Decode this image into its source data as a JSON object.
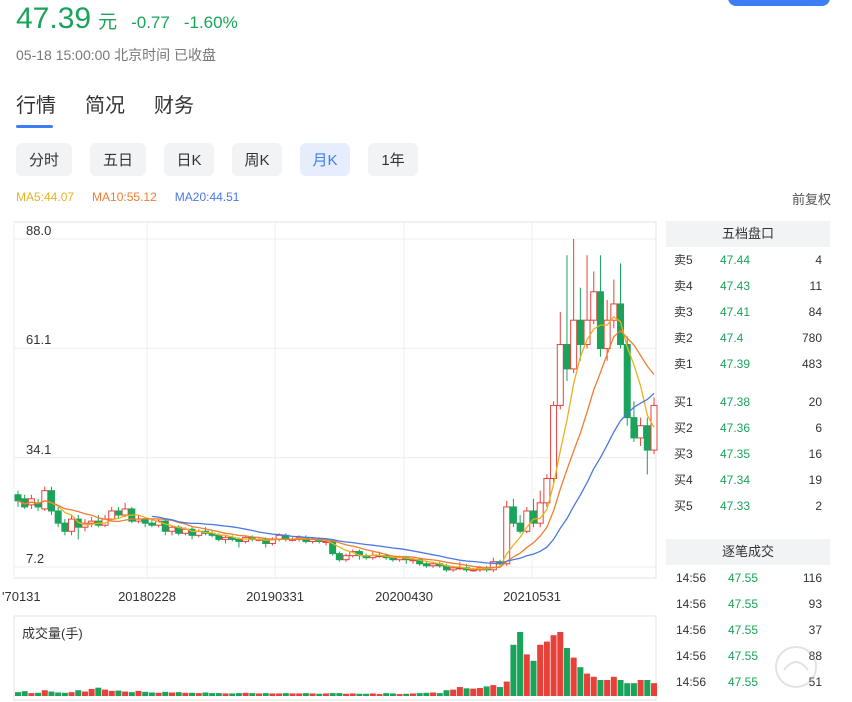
{
  "quote": {
    "price": "47.39",
    "unit": "元",
    "change": "-0.77",
    "change_pct": "-1.60%",
    "status": "05-18 15:00:00 北京时间 已收盘"
  },
  "tabs": [
    {
      "label": "行情",
      "active": true
    },
    {
      "label": "简况",
      "active": false
    },
    {
      "label": "财务",
      "active": false
    }
  ],
  "periods": [
    {
      "label": "分时",
      "active": false
    },
    {
      "label": "五日",
      "active": false
    },
    {
      "label": "日K",
      "active": false
    },
    {
      "label": "周K",
      "active": false
    },
    {
      "label": "月K",
      "active": true
    },
    {
      "label": "1年",
      "active": false
    }
  ],
  "ma": {
    "ma5": "MA5:44.07",
    "ma10": "MA10:55.12",
    "ma20": "MA20:44.51",
    "adjust": "前复权"
  },
  "colors": {
    "up": "#e8413a",
    "down": "#1aa35a",
    "ma5": "#e8b21f",
    "ma10": "#ef7d32",
    "ma20": "#4b78e2",
    "accent": "#3d7ef5"
  },
  "chart_data": {
    "type": "candlestick",
    "ylim": [
      7.2,
      88.0
    ],
    "y_ticks": [
      "88.0",
      "61.1",
      "34.1",
      "7.2"
    ],
    "x_labels": [
      "70131",
      "20180228",
      "20190331",
      "20200430",
      "20210531"
    ],
    "volume_label": "成交量(手)",
    "candles": [
      [
        25,
        23.5,
        26,
        22
      ],
      [
        24,
        22,
        25,
        21.5
      ],
      [
        22.5,
        24,
        25,
        21.5
      ],
      [
        23,
        22,
        24,
        21
      ],
      [
        21.5,
        26,
        27,
        21
      ],
      [
        26,
        21,
        27,
        20
      ],
      [
        21,
        18,
        22,
        17
      ],
      [
        18,
        16,
        19,
        15
      ],
      [
        16,
        19,
        20,
        15
      ],
      [
        19,
        17,
        20,
        14
      ],
      [
        17,
        18,
        19,
        16
      ],
      [
        18,
        18.5,
        19.5,
        17
      ],
      [
        18.5,
        17.5,
        20,
        17
      ],
      [
        17.5,
        19,
        20,
        17
      ],
      [
        19,
        21,
        22,
        18.5
      ],
      [
        21,
        20,
        22,
        19
      ],
      [
        20,
        21.5,
        23,
        19.5
      ],
      [
        21.5,
        18.5,
        22,
        18
      ],
      [
        18.5,
        19,
        20,
        18
      ],
      [
        19,
        18,
        19.5,
        17
      ],
      [
        18,
        17.5,
        19,
        17
      ],
      [
        17.5,
        18.5,
        19,
        17
      ],
      [
        18.5,
        16,
        19,
        15
      ],
      [
        16,
        17,
        17.5,
        15
      ],
      [
        17,
        15.5,
        17.5,
        15
      ],
      [
        15.5,
        16.5,
        17,
        15
      ],
      [
        16.5,
        15,
        17,
        14
      ],
      [
        15,
        16,
        16.5,
        14.5
      ],
      [
        16,
        15.5,
        17,
        15
      ],
      [
        15.5,
        15,
        16,
        14.5
      ],
      [
        15,
        14,
        15.5,
        13.5
      ],
      [
        14,
        14.5,
        15,
        13
      ],
      [
        14.5,
        14,
        15,
        13.5
      ],
      [
        14,
        13.5,
        14.5,
        12
      ],
      [
        13.5,
        14.5,
        15,
        13
      ],
      [
        14.5,
        14,
        15,
        13.5
      ],
      [
        14,
        14,
        14.5,
        13.5
      ],
      [
        14,
        13,
        14.5,
        12
      ],
      [
        13,
        14,
        14.5,
        12.5
      ],
      [
        14,
        15,
        15.5,
        13.5
      ],
      [
        15,
        14,
        15.5,
        13.5
      ],
      [
        14,
        14,
        14.5,
        13.5
      ],
      [
        14,
        14.5,
        15,
        13.5
      ],
      [
        14.5,
        13.5,
        15,
        13
      ],
      [
        13.5,
        14,
        14.5,
        13
      ],
      [
        14,
        13.5,
        14.5,
        13
      ],
      [
        13.5,
        13.5,
        14,
        12.5
      ],
      [
        13.5,
        10.5,
        14,
        10
      ],
      [
        10.5,
        9,
        11,
        8.5
      ],
      [
        9,
        10,
        10.5,
        8.5
      ],
      [
        10,
        11,
        11.5,
        9.5
      ],
      [
        11,
        10,
        11.5,
        9
      ],
      [
        10,
        9.5,
        10.5,
        9
      ],
      [
        9.5,
        10,
        11,
        9
      ],
      [
        10,
        10,
        11,
        9.5
      ],
      [
        10,
        9.5,
        10.5,
        9
      ],
      [
        9.5,
        9,
        10,
        8.5
      ],
      [
        9,
        9.5,
        10,
        8.5
      ],
      [
        9.5,
        9,
        10,
        8
      ],
      [
        9,
        9,
        9.5,
        8
      ],
      [
        9,
        8,
        9.5,
        7.5
      ],
      [
        8,
        7.5,
        8.5,
        7
      ],
      [
        7.5,
        8,
        8.5,
        7
      ],
      [
        8,
        7.5,
        8.5,
        7
      ],
      [
        7.5,
        6.5,
        8,
        6
      ],
      [
        6.5,
        7,
        7.5,
        6
      ],
      [
        7,
        7,
        8.5,
        6.5
      ],
      [
        7,
        6.5,
        8,
        6
      ],
      [
        6.5,
        6.5,
        7,
        6
      ],
      [
        6.5,
        7,
        7.5,
        6
      ],
      [
        7,
        6.5,
        7.5,
        6
      ],
      [
        6.5,
        8.5,
        9.5,
        6
      ],
      [
        8.5,
        8,
        9,
        7.5
      ],
      [
        8,
        22,
        23.5,
        7.5
      ],
      [
        22,
        18,
        24,
        17
      ],
      [
        18,
        16,
        20,
        15.5
      ],
      [
        16,
        21,
        22,
        15.5
      ],
      [
        21,
        18,
        24,
        17
      ],
      [
        18,
        23,
        26,
        17
      ],
      [
        23,
        29,
        30,
        22
      ],
      [
        29,
        47,
        48,
        28
      ],
      [
        47,
        62,
        70,
        46
      ],
      [
        62,
        56,
        84,
        53
      ],
      [
        56,
        68,
        88,
        55
      ],
      [
        68,
        62,
        76,
        58
      ],
      [
        62,
        68,
        84,
        61
      ],
      [
        68,
        75,
        80,
        67
      ],
      [
        75,
        61,
        84,
        59
      ],
      [
        61,
        68,
        73,
        58
      ],
      [
        68,
        72,
        78,
        66
      ],
      [
        72,
        62,
        82,
        61
      ],
      [
        62,
        44,
        64,
        42
      ],
      [
        44,
        39,
        48,
        38
      ],
      [
        39,
        42,
        44,
        37
      ],
      [
        42,
        36,
        44,
        30
      ],
      [
        36,
        47,
        49,
        35
      ]
    ],
    "volume": [
      1.2,
      1.5,
      0.9,
      1.0,
      1.8,
      1.4,
      1.1,
      1.0,
      1.2,
      1.8,
      1.4,
      2.2,
      2.6,
      2.0,
      1.6,
      1.7,
      1.4,
      1.2,
      1.6,
      1.3,
      1.1,
      1.0,
      1.3,
      1.1,
      1.2,
      1.0,
      1.0,
      0.9,
      1.1,
      0.9,
      0.9,
      0.8,
      0.8,
      0.9,
      1.0,
      0.9,
      0.8,
      0.9,
      0.8,
      0.8,
      0.9,
      0.8,
      0.8,
      0.9,
      0.8,
      0.7,
      0.8,
      0.9,
      0.9,
      0.7,
      0.8,
      0.7,
      0.7,
      0.8,
      0.6,
      0.9,
      0.8,
      0.6,
      0.7,
      0.8,
      0.9,
      1.0,
      1.1,
      0.9,
      1.8,
      2.0,
      2.8,
      2.4,
      2.3,
      2.5,
      3.0,
      3.4,
      2.8,
      4.5,
      16,
      20,
      13,
      11,
      16,
      17,
      19,
      20,
      15,
      12,
      9,
      7,
      6,
      5,
      5,
      6,
      5,
      4,
      4,
      5,
      5,
      4
    ]
  },
  "ask": {
    "title": "五档盘口",
    "rows": [
      {
        "label": "卖5",
        "price": "47.44",
        "vol": "4"
      },
      {
        "label": "卖4",
        "price": "47.43",
        "vol": "11"
      },
      {
        "label": "卖3",
        "price": "47.41",
        "vol": "84"
      },
      {
        "label": "卖2",
        "price": "47.4",
        "vol": "780"
      },
      {
        "label": "卖1",
        "price": "47.39",
        "vol": "483"
      }
    ]
  },
  "bid": {
    "rows": [
      {
        "label": "买1",
        "price": "47.38",
        "vol": "20"
      },
      {
        "label": "买2",
        "price": "47.36",
        "vol": "6"
      },
      {
        "label": "买3",
        "price": "47.35",
        "vol": "16"
      },
      {
        "label": "买4",
        "price": "47.34",
        "vol": "19"
      },
      {
        "label": "买5",
        "price": "47.33",
        "vol": "2"
      }
    ]
  },
  "trades": {
    "title": "逐笔成交",
    "rows": [
      {
        "time": "14:56",
        "price": "47.55",
        "vol": "116"
      },
      {
        "time": "14:56",
        "price": "47.55",
        "vol": "93"
      },
      {
        "time": "14:56",
        "price": "47.55",
        "vol": "37"
      },
      {
        "time": "14:56",
        "price": "47.55",
        "vol": "88"
      },
      {
        "time": "14:56",
        "price": "47.55",
        "vol": "51"
      }
    ]
  }
}
